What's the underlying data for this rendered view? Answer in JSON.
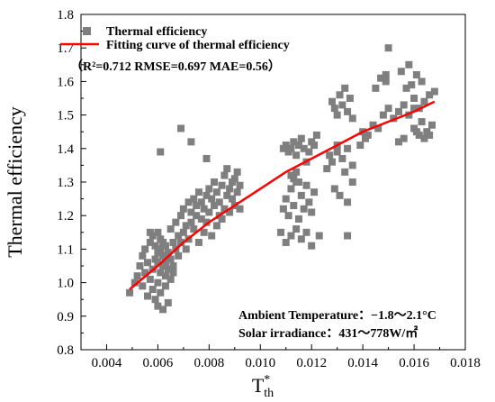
{
  "chart_data": {
    "type": "scatter",
    "xlabel": "T",
    "xlabel_sup": "*",
    "xlabel_sub": "th",
    "ylabel": "Thermal efficiency",
    "xlim": [
      0.003,
      0.018
    ],
    "ylim": [
      0.8,
      1.8
    ],
    "xticks": [
      0.004,
      0.006,
      0.008,
      0.01,
      0.012,
      0.014,
      0.016,
      0.018
    ],
    "xtick_labels": [
      "0.004",
      "0.006",
      "0.008",
      "0.010",
      "0.012",
      "0.014",
      "0.016",
      "0.018"
    ],
    "yticks": [
      0.8,
      0.9,
      1.0,
      1.1,
      1.2,
      1.3,
      1.4,
      1.5,
      1.6,
      1.7,
      1.8
    ],
    "ytick_labels": [
      "0.8",
      "0.9",
      "1.0",
      "1.1",
      "1.2",
      "1.3",
      "1.4",
      "1.5",
      "1.6",
      "1.7",
      "1.8"
    ],
    "grid": false,
    "legend_position": "top-left",
    "legend": [
      {
        "label": "Thermal efficiency",
        "marker": "square",
        "color": "#7f7f7f"
      },
      {
        "label": "Fitting curve of thermal efficiency",
        "marker": "line",
        "color": "#ff0000"
      }
    ],
    "metrics_text": "（R²=0.712 RMSE=0.697  MAE=0.56）",
    "annotations": [
      "Ambient Temperature：−1.8～2.1°C",
      "Solar irradiance：431～778W/㎡"
    ],
    "series": [
      {
        "name": "Thermal efficiency",
        "kind": "scatter",
        "color": "#7f7f7f",
        "x": [
          0.0049,
          0.0051,
          0.0052,
          0.0053,
          0.0054,
          0.0054,
          0.0055,
          0.0055,
          0.0056,
          0.0056,
          0.0057,
          0.0057,
          0.0058,
          0.0058,
          0.0058,
          0.0059,
          0.0059,
          0.0059,
          0.006,
          0.006,
          0.006,
          0.006,
          0.0061,
          0.0061,
          0.0061,
          0.0061,
          0.0062,
          0.0062,
          0.0062,
          0.0062,
          0.0063,
          0.0063,
          0.0063,
          0.0063,
          0.0064,
          0.0064,
          0.0064,
          0.0065,
          0.0065,
          0.0065,
          0.0066,
          0.0066,
          0.0067,
          0.0067,
          0.0068,
          0.0068,
          0.0069,
          0.0069,
          0.007,
          0.007,
          0.0071,
          0.0071,
          0.0072,
          0.0072,
          0.0073,
          0.0073,
          0.0074,
          0.0074,
          0.0075,
          0.0075,
          0.0076,
          0.0076,
          0.0077,
          0.0077,
          0.0078,
          0.0078,
          0.0079,
          0.0079,
          0.008,
          0.008,
          0.0081,
          0.0081,
          0.0082,
          0.0082,
          0.0083,
          0.0083,
          0.0084,
          0.0084,
          0.0085,
          0.0085,
          0.0086,
          0.0086,
          0.0087,
          0.0087,
          0.0088,
          0.0088,
          0.0089,
          0.0089,
          0.009,
          0.009,
          0.0091,
          0.0091,
          0.0092,
          0.0092,
          0.0061,
          0.0069,
          0.0073,
          0.0079,
          0.0057,
          0.006,
          0.0063,
          0.0066,
          0.0109,
          0.011,
          0.0111,
          0.0112,
          0.0113,
          0.0114,
          0.0115,
          0.0116,
          0.0117,
          0.0118,
          0.0119,
          0.012,
          0.0121,
          0.0122,
          0.0109,
          0.011,
          0.0111,
          0.0112,
          0.0113,
          0.0114,
          0.0115,
          0.0116,
          0.0117,
          0.0118,
          0.0119,
          0.012,
          0.0121,
          0.0108,
          0.011,
          0.0112,
          0.0114,
          0.0116,
          0.0118,
          0.012,
          0.0123,
          0.0112,
          0.0113,
          0.0114,
          0.0115,
          0.0128,
          0.0129,
          0.013,
          0.0131,
          0.0132,
          0.0133,
          0.0134,
          0.0135,
          0.0136,
          0.0127,
          0.013,
          0.0132,
          0.0134,
          0.0136,
          0.0126,
          0.0128,
          0.013,
          0.0133,
          0.0129,
          0.0131,
          0.0134,
          0.0136,
          0.0134,
          0.014,
          0.0142,
          0.0144,
          0.0146,
          0.0148,
          0.015,
          0.0152,
          0.0154,
          0.0156,
          0.0158,
          0.016,
          0.0162,
          0.0164,
          0.0166,
          0.0168,
          0.0145,
          0.0147,
          0.0149,
          0.0155,
          0.0157,
          0.0159,
          0.0161,
          0.0163,
          0.0165,
          0.0167,
          0.0149,
          0.015,
          0.016,
          0.0161,
          0.0162,
          0.0164,
          0.0158,
          0.0163,
          0.0154,
          0.0156,
          0.016,
          0.0166,
          0.0141,
          0.0139
        ],
        "y": [
          0.97,
          1.0,
          1.02,
          1.05,
          0.99,
          1.08,
          1.03,
          1.1,
          0.96,
          1.06,
          1.01,
          1.12,
          0.98,
          1.04,
          1.14,
          0.95,
          1.07,
          1.11,
          0.93,
          1.0,
          1.09,
          1.15,
          0.97,
          1.03,
          1.1,
          1.13,
          0.92,
          1.05,
          1.08,
          1.12,
          0.99,
          1.02,
          1.06,
          1.11,
          0.94,
          1.04,
          1.09,
          1.01,
          1.07,
          1.16,
          1.05,
          1.12,
          1.1,
          1.18,
          1.08,
          1.14,
          1.12,
          1.2,
          1.15,
          1.22,
          1.1,
          1.17,
          1.13,
          1.24,
          1.18,
          1.21,
          1.16,
          1.25,
          1.2,
          1.23,
          1.12,
          1.27,
          1.19,
          1.24,
          1.15,
          1.22,
          1.26,
          1.18,
          1.21,
          1.28,
          1.14,
          1.25,
          1.23,
          1.3,
          1.17,
          1.27,
          1.2,
          1.24,
          1.29,
          1.19,
          1.32,
          1.22,
          1.26,
          1.34,
          1.21,
          1.28,
          1.25,
          1.3,
          1.23,
          1.31,
          1.27,
          1.33,
          1.22,
          1.29,
          1.39,
          1.46,
          1.42,
          1.37,
          1.15,
          1.06,
          1.08,
          1.03,
          1.4,
          1.41,
          1.39,
          1.4,
          1.42,
          1.38,
          1.41,
          1.43,
          1.4,
          1.36,
          1.39,
          1.42,
          1.41,
          1.44,
          1.22,
          1.25,
          1.2,
          1.28,
          1.23,
          1.3,
          1.19,
          1.26,
          1.22,
          1.29,
          1.24,
          1.21,
          1.27,
          1.15,
          1.12,
          1.14,
          1.16,
          1.13,
          1.15,
          1.11,
          1.14,
          1.32,
          1.31,
          1.33,
          1.3,
          1.54,
          1.52,
          1.5,
          1.56,
          1.53,
          1.58,
          1.51,
          1.55,
          1.49,
          1.38,
          1.41,
          1.37,
          1.4,
          1.35,
          1.34,
          1.36,
          1.39,
          1.33,
          1.28,
          1.26,
          1.24,
          1.3,
          1.14,
          1.45,
          1.44,
          1.47,
          1.46,
          1.5,
          1.52,
          1.49,
          1.51,
          1.53,
          1.5,
          1.55,
          1.52,
          1.54,
          1.56,
          1.57,
          1.58,
          1.61,
          1.6,
          1.63,
          1.58,
          1.59,
          1.62,
          1.48,
          1.45,
          1.47,
          1.62,
          1.7,
          1.46,
          1.45,
          1.44,
          1.43,
          1.65,
          1.6,
          1.42,
          1.43,
          1.52,
          1.44,
          1.43,
          1.41
        ]
      },
      {
        "name": "Fitting curve of thermal efficiency",
        "kind": "line",
        "color": "#ff0000",
        "x": [
          0.0049,
          0.006,
          0.007,
          0.008,
          0.009,
          0.01,
          0.011,
          0.012,
          0.013,
          0.014,
          0.015,
          0.016,
          0.0168
        ],
        "y": [
          0.98,
          1.05,
          1.12,
          1.18,
          1.23,
          1.28,
          1.33,
          1.37,
          1.41,
          1.45,
          1.48,
          1.51,
          1.54
        ]
      }
    ]
  }
}
